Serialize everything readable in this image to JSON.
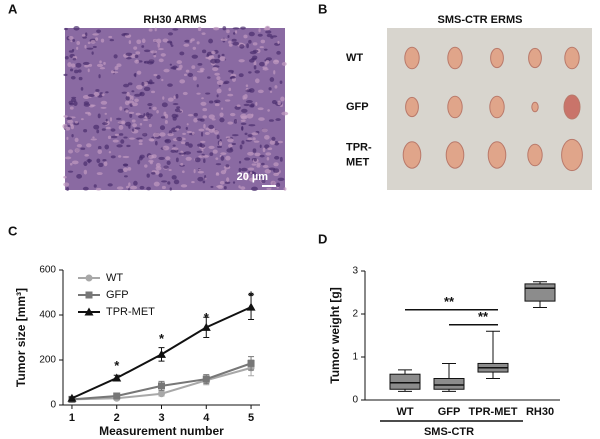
{
  "panels": {
    "a": {
      "label": "A",
      "title": "RH30 ARMS",
      "scale": "20 µm"
    },
    "b": {
      "label": "B",
      "title": "SMS-CTR ERMS",
      "rows": [
        [
          "WT"
        ],
        [
          "GFP"
        ],
        [
          "TPR-",
          "MET"
        ]
      ]
    },
    "c": {
      "label": "C"
    },
    "d": {
      "label": "D"
    }
  },
  "chart_data": [
    {
      "type": "line",
      "xlabel": "Measurement number",
      "ylabel": "Tumor size [mm³]",
      "x": [
        1,
        2,
        3,
        4,
        5
      ],
      "xlim": [
        0.8,
        5.2
      ],
      "xticks": [
        1,
        2,
        3,
        4,
        5
      ],
      "ylim": [
        0,
        600
      ],
      "yticks": [
        0,
        200,
        400,
        600
      ],
      "legend": "upper left",
      "series": [
        {
          "name": "WT",
          "color": "#a8a8a8",
          "marker": "circle",
          "values": [
            25,
            30,
            50,
            110,
            165
          ],
          "errors": [
            5,
            8,
            10,
            20,
            35
          ]
        },
        {
          "name": "GFP",
          "color": "#777777",
          "marker": "square",
          "values": [
            25,
            40,
            85,
            115,
            185
          ],
          "errors": [
            5,
            10,
            20,
            20,
            30
          ]
        },
        {
          "name": "TPR-MET",
          "color": "#111111",
          "marker": "triangle",
          "values": [
            30,
            120,
            225,
            345,
            435
          ],
          "errors": [
            5,
            12,
            30,
            45,
            55
          ]
        }
      ],
      "annotations": [
        {
          "x": 2,
          "y": 170,
          "text": "*"
        },
        {
          "x": 3,
          "y": 290,
          "text": "*"
        },
        {
          "x": 4,
          "y": 385,
          "text": "*"
        },
        {
          "x": 5,
          "y": 480,
          "text": "*"
        }
      ]
    },
    {
      "type": "box",
      "ylabel": "Tumor weight [g]",
      "categories": [
        "WT",
        "GFP",
        "TPR-MET",
        "RH30"
      ],
      "ylim": [
        0,
        3
      ],
      "yticks": [
        0,
        1,
        2,
        3
      ],
      "color": "#8c8c8c",
      "boxes": [
        {
          "min": 0.2,
          "q1": 0.25,
          "median": 0.4,
          "q3": 0.6,
          "max": 0.7
        },
        {
          "min": 0.2,
          "q1": 0.25,
          "median": 0.35,
          "q3": 0.5,
          "max": 0.85
        },
        {
          "min": 0.5,
          "q1": 0.65,
          "median": 0.75,
          "q3": 0.85,
          "max": 1.6
        },
        {
          "min": 2.15,
          "q1": 2.3,
          "median": 2.6,
          "q3": 2.7,
          "max": 2.75
        }
      ],
      "annotations": [
        {
          "from": 0,
          "to": 2,
          "y": 2.1,
          "text": "**"
        },
        {
          "from": 1,
          "to": 2,
          "y": 1.75,
          "text": "**"
        }
      ],
      "group": {
        "label": "SMS-CTR",
        "from": 0,
        "to": 2
      }
    }
  ]
}
